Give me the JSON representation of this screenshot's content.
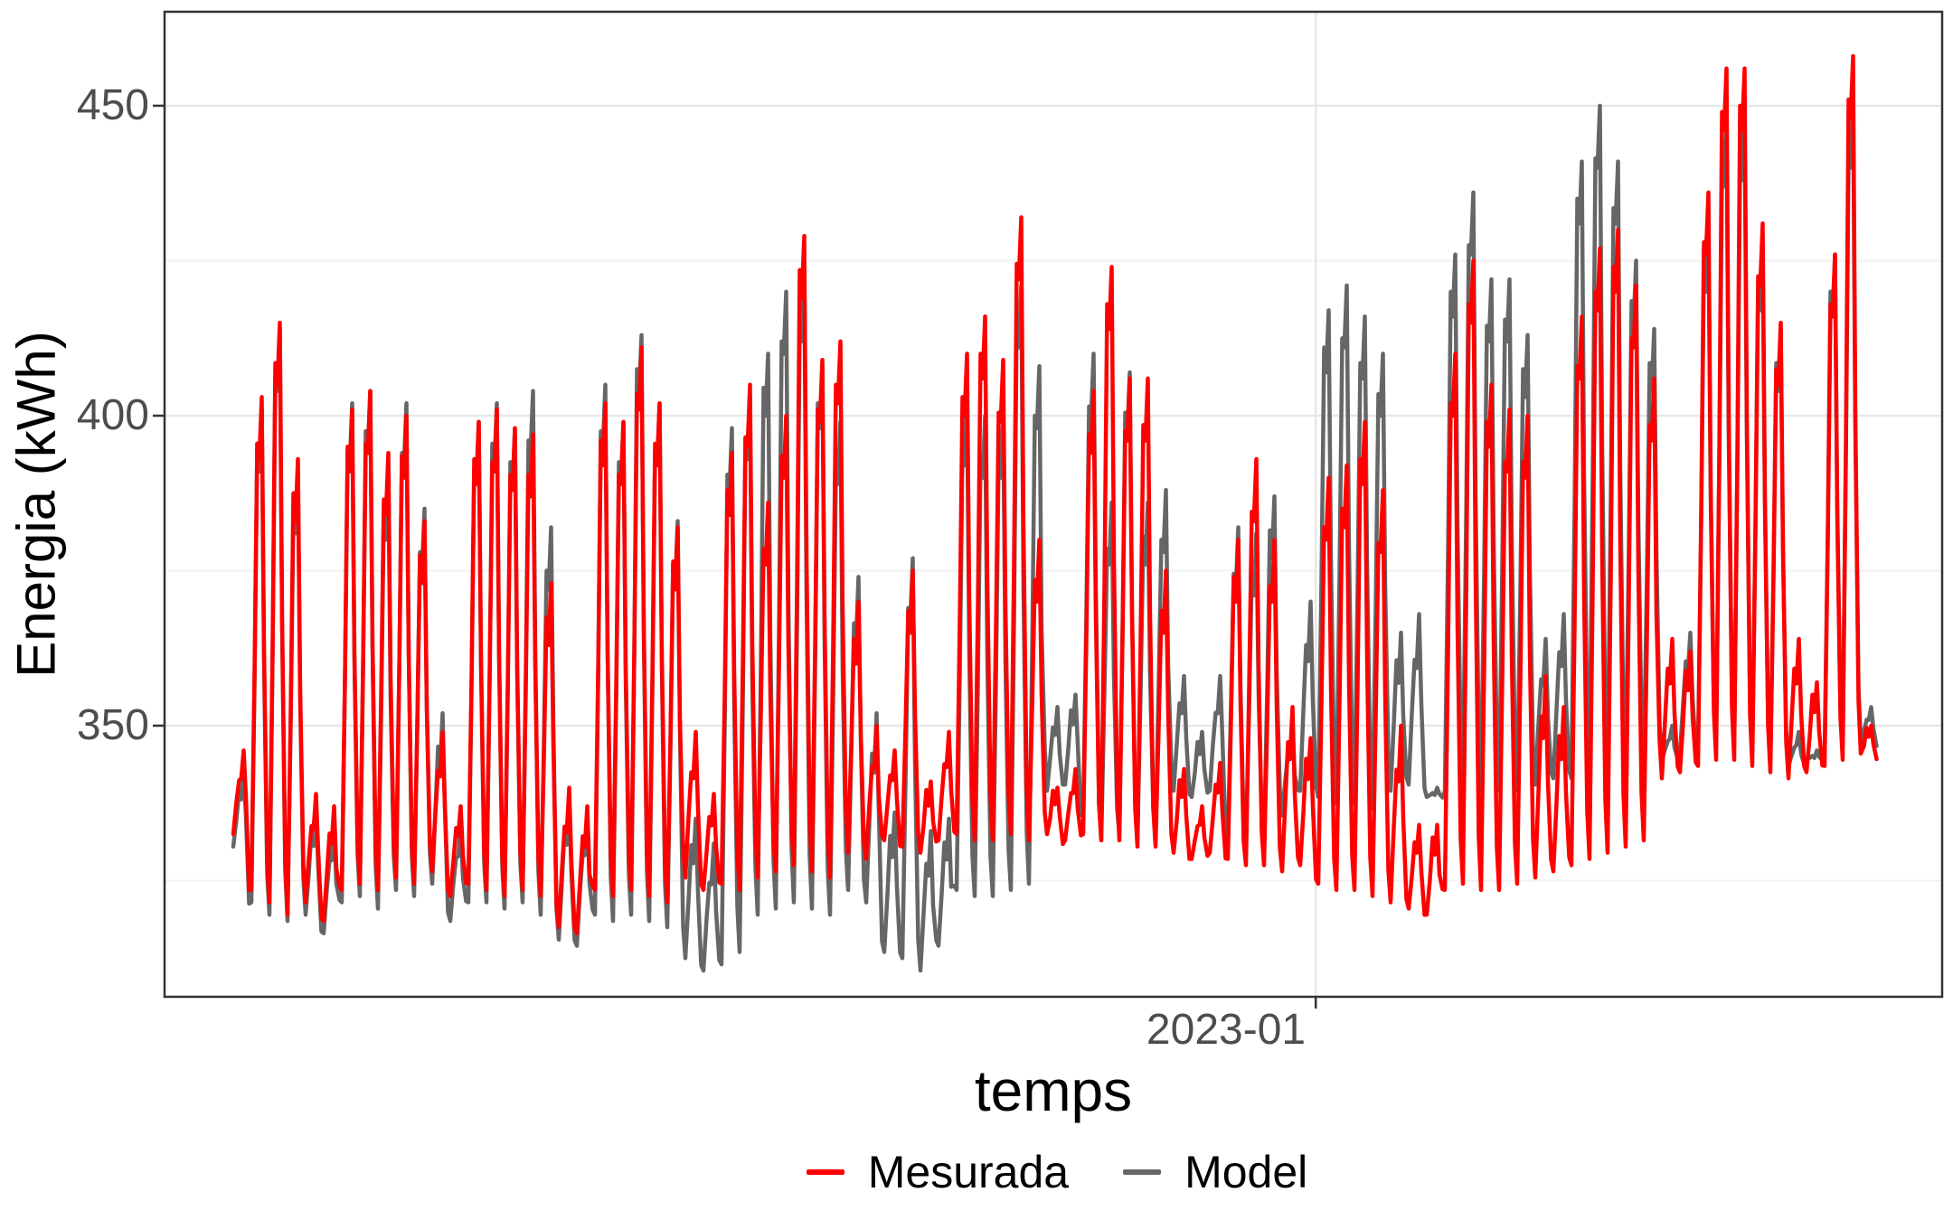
{
  "chart_data": {
    "type": "line",
    "title": "",
    "xlabel": "temps",
    "ylabel": "Energia (kWh)",
    "x_tick_label": "2023-01",
    "x_tick_frac": 0.6476,
    "y_tick_labels": [
      "450",
      "400",
      "350"
    ],
    "y_ticks": [
      450,
      400,
      350
    ],
    "y_minor_ticks": [
      425,
      375,
      325
    ],
    "ylim": [
      306,
      465
    ],
    "grid": true,
    "legend_position": "bottom",
    "panel_border": true,
    "series": [
      {
        "name": "Mesurada",
        "color": "#FF0000"
      },
      {
        "name": "Model",
        "color": "#666666"
      }
    ],
    "days_format": "[mesurada_peak, model_peak, mesurada_night_valley, model_night_valley] in kWh, one entry per day",
    "days": [
      [
        346,
        342,
        331,
        329
      ],
      [
        403,
        401,
        322,
        320
      ],
      [
        415,
        414,
        320,
        318
      ],
      [
        393,
        391,
        318,
        317
      ],
      [
        339,
        336,
        320,
        318
      ],
      [
        337,
        334,
        317,
        315
      ],
      [
        401,
        402,
        322,
        320
      ],
      [
        404,
        404,
        323,
        321
      ],
      [
        394,
        390,
        322,
        319
      ],
      [
        400,
        402,
        324,
        322
      ],
      [
        383,
        385,
        323,
        321
      ],
      [
        349,
        352,
        325,
        323
      ],
      [
        337,
        334,
        321,
        317
      ],
      [
        399,
        399,
        323,
        320
      ],
      [
        401,
        402,
        322,
        320
      ],
      [
        398,
        398,
        321,
        319
      ],
      [
        397,
        404,
        322,
        320
      ],
      [
        373,
        382,
        321,
        318
      ],
      [
        340,
        338,
        316,
        314
      ],
      [
        337,
        336,
        315,
        313
      ],
      [
        402,
        405,
        322,
        318
      ],
      [
        399,
        399,
        321,
        317
      ],
      [
        411,
        413,
        322,
        318
      ],
      [
        402,
        402,
        321,
        317
      ],
      [
        382,
        383,
        320,
        316
      ],
      [
        349,
        335,
        324,
        311
      ],
      [
        339,
        331,
        322,
        309
      ],
      [
        394,
        398,
        323,
        310
      ],
      [
        405,
        403,
        322,
        312
      ],
      [
        386,
        410,
        324,
        318
      ],
      [
        400,
        420,
        325,
        319
      ],
      [
        429,
        422,
        326,
        320
      ],
      [
        409,
        408,
        325,
        319
      ],
      [
        412,
        399,
        324,
        318
      ],
      [
        370,
        374,
        328,
        322
      ],
      [
        350,
        352,
        327,
        320
      ],
      [
        346,
        336,
        330,
        312
      ],
      [
        375,
        377,
        329,
        311
      ],
      [
        341,
        333,
        328,
        309
      ],
      [
        349,
        335,
        330,
        313
      ],
      [
        410,
        402,
        331,
        322
      ],
      [
        416,
        400,
        330,
        321
      ],
      [
        409,
        400,
        330,
        321
      ],
      [
        432,
        421,
        331,
        322
      ],
      [
        380,
        408,
        330,
        323
      ],
      [
        340,
        353,
        331,
        338
      ],
      [
        343,
        355,
        330,
        339
      ],
      [
        404,
        410,
        331,
        334
      ],
      [
        424,
        386,
        330,
        330
      ],
      [
        406,
        407,
        330,
        331
      ],
      [
        406,
        386,
        329,
        330
      ],
      [
        375,
        388,
        329,
        331
      ],
      [
        343,
        358,
        328,
        338
      ],
      [
        337,
        349,
        327,
        337
      ],
      [
        344,
        358,
        328,
        338
      ],
      [
        380,
        382,
        327,
        330
      ],
      [
        393,
        381,
        326,
        329
      ],
      [
        380,
        387,
        326,
        330
      ],
      [
        353,
        350,
        325,
        334
      ],
      [
        348,
        370,
        326,
        338
      ],
      [
        390,
        417,
        323,
        337
      ],
      [
        392,
        421,
        322,
        336
      ],
      [
        399,
        416,
        322,
        336
      ],
      [
        388,
        410,
        321,
        335
      ],
      [
        350,
        365,
        320,
        338
      ],
      [
        334,
        368,
        319,
        339
      ],
      [
        334,
        340,
        318,
        337
      ],
      [
        410,
        426,
        322,
        338
      ],
      [
        425,
        436,
        323,
        339
      ],
      [
        405,
        422,
        322,
        338
      ],
      [
        401,
        422,
        322,
        338
      ],
      [
        400,
        413,
        323,
        338
      ],
      [
        358,
        364,
        324,
        339
      ],
      [
        353,
        368,
        325,
        340
      ],
      [
        416,
        441,
        326,
        340
      ],
      [
        427,
        450,
        327,
        341
      ],
      [
        430,
        441,
        328,
        341
      ],
      [
        421,
        425,
        329,
        341
      ],
      [
        406,
        414,
        330,
        342
      ],
      [
        364,
        350,
        340,
        343
      ],
      [
        362,
        365,
        341,
        344
      ],
      [
        436,
        430,
        342,
        344
      ],
      [
        456,
        447,
        343,
        345
      ],
      [
        456,
        448,
        343,
        345
      ],
      [
        431,
        427,
        342,
        344
      ],
      [
        415,
        414,
        341,
        343
      ],
      [
        364,
        349,
        340,
        342
      ],
      [
        357,
        346,
        341,
        343
      ],
      [
        426,
        426,
        342,
        344
      ],
      [
        458,
        450,
        343,
        345
      ],
      [
        350,
        353,
        344,
        346
      ]
    ]
  },
  "colors": {
    "background": "#ffffff",
    "panel_border": "#333333",
    "grid_major": "#e7e7e7",
    "grid_minor": "#f2f2f2",
    "axis_text": "#4d4d4d",
    "axis_title": "#000000",
    "tick_mark": "#333333"
  }
}
